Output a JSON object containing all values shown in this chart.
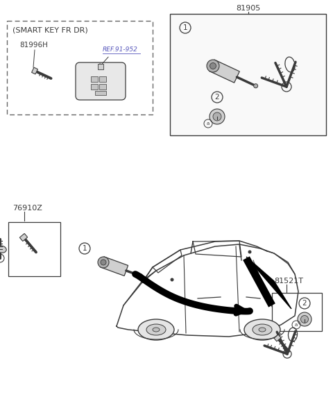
{
  "bg_color": "#ffffff",
  "lc": "#3a3a3a",
  "gray1": "#d0d0d0",
  "gray2": "#b0b0b0",
  "gray3": "#888888",
  "labels": {
    "smart_key_title": "(SMART KEY FR DR)",
    "part_81996H": "81996H",
    "ref_91952": "REF.91-952",
    "part_81905": "81905",
    "part_76910Z": "76910Z",
    "part_81521T": "81521T"
  },
  "fig_w": 4.8,
  "fig_h": 5.85,
  "dpi": 100
}
